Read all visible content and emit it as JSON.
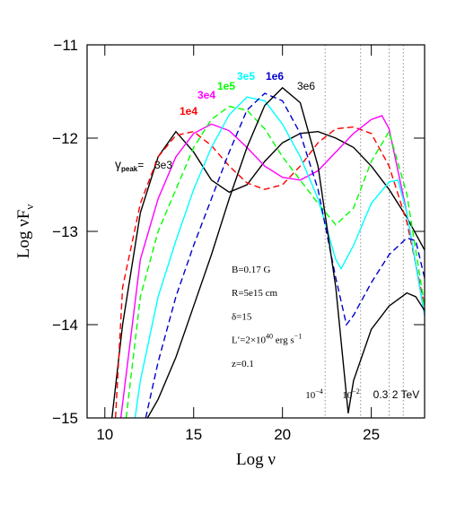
{
  "chart_data": {
    "type": "line",
    "xlabel": "Log ν",
    "ylabel": "Log νF",
    "ylabel_sub": "ν",
    "xlim": [
      9,
      28
    ],
    "ylim": [
      -15,
      -11
    ],
    "xticks": [
      10,
      15,
      20,
      25
    ],
    "yticks": [
      {
        "value": -11,
        "label": "−11"
      },
      {
        "value": -12,
        "label": "−12"
      },
      {
        "value": -13,
        "label": "−13"
      },
      {
        "value": -14,
        "label": "−14"
      },
      {
        "value": -15,
        "label": "−15"
      }
    ],
    "label_prefix": {
      "symbol": "γ",
      "subscript": "peak",
      "sign": "="
    },
    "series": [
      {
        "name": "3e3",
        "color": "#000000",
        "dashed": false,
        "x": [
          10.4,
          11,
          12,
          13,
          14,
          15,
          16,
          17,
          18,
          19,
          20,
          21,
          22,
          23,
          24,
          25,
          26,
          27,
          28
        ],
        "values": [
          -15,
          -14.0,
          -12.8,
          -12.2,
          -11.93,
          -12.15,
          -12.45,
          -12.58,
          -12.5,
          -12.25,
          -12.05,
          -11.95,
          -11.93,
          -12.0,
          -12.1,
          -12.3,
          -12.55,
          -12.85,
          -13.2
        ]
      },
      {
        "name": "1e4",
        "color": "#ff0000",
        "dashed": true,
        "x": [
          10.6,
          11,
          12,
          13,
          14,
          15,
          16,
          17,
          18,
          19,
          20,
          21,
          22,
          23,
          24,
          25,
          26,
          27,
          28
        ],
        "values": [
          -15,
          -13.6,
          -12.7,
          -12.2,
          -11.97,
          -11.93,
          -12.08,
          -12.3,
          -12.48,
          -12.55,
          -12.5,
          -12.3,
          -12.05,
          -11.9,
          -11.88,
          -11.95,
          -12.3,
          -12.9,
          -13.8
        ]
      },
      {
        "name": "3e4",
        "color": "#ff00ff",
        "dashed": false,
        "x": [
          10.9,
          12,
          13,
          14,
          15,
          16,
          17,
          18,
          19,
          20,
          21,
          22,
          23,
          24,
          25,
          25.6,
          26,
          27,
          28
        ],
        "values": [
          -15,
          -13.3,
          -12.65,
          -12.2,
          -11.95,
          -11.85,
          -11.92,
          -12.1,
          -12.3,
          -12.42,
          -12.45,
          -12.35,
          -12.15,
          -11.95,
          -11.8,
          -11.76,
          -11.9,
          -12.8,
          -13.9
        ]
      },
      {
        "name": "1e5",
        "color": "#00ff00",
        "dashed": true,
        "x": [
          11.2,
          12,
          13,
          14,
          15,
          16,
          17,
          18,
          19,
          20,
          21,
          22,
          23,
          24,
          25,
          26,
          27,
          28
        ],
        "values": [
          -15,
          -13.7,
          -13.0,
          -12.55,
          -12.1,
          -11.8,
          -11.66,
          -11.7,
          -11.9,
          -12.2,
          -12.45,
          -12.7,
          -12.93,
          -12.75,
          -12.25,
          -11.93,
          -12.6,
          -13.8
        ]
      },
      {
        "name": "3e5",
        "color": "#00ffff",
        "dashed": false,
        "x": [
          11.7,
          12,
          13,
          14,
          15,
          16,
          17,
          18,
          19,
          20,
          21,
          22,
          23,
          23.3,
          24,
          25,
          26,
          26.5,
          27,
          28
        ],
        "values": [
          -15,
          -14.6,
          -13.7,
          -13.1,
          -12.55,
          -12.1,
          -11.75,
          -11.56,
          -11.6,
          -11.85,
          -12.2,
          -12.65,
          -13.3,
          -13.4,
          -13.15,
          -12.7,
          -12.47,
          -12.45,
          -12.8,
          -13.9
        ]
      },
      {
        "name": "1e6",
        "color": "#0000cc",
        "dashed": true,
        "x": [
          12.3,
          13,
          14,
          15,
          16,
          17,
          18,
          19,
          20,
          21,
          22,
          23,
          23.6,
          24,
          25,
          26,
          27,
          27.5,
          28
        ],
        "values": [
          -15,
          -14.4,
          -13.7,
          -13.15,
          -12.65,
          -12.15,
          -11.7,
          -11.52,
          -11.6,
          -11.95,
          -12.55,
          -13.5,
          -14.0,
          -13.9,
          -13.55,
          -13.25,
          -13.07,
          -13.1,
          -13.5
        ]
      },
      {
        "name": "3e6",
        "color": "#000000",
        "dashed": false,
        "x": [
          12.4,
          13,
          14,
          15,
          16,
          17,
          18,
          19,
          20,
          21,
          22,
          23,
          23.7,
          24,
          25,
          26,
          27,
          27.5,
          28
        ],
        "values": [
          -15,
          -14.8,
          -14.35,
          -13.8,
          -13.25,
          -12.65,
          -12.1,
          -11.65,
          -11.46,
          -11.62,
          -12.3,
          -13.6,
          -14.95,
          -14.6,
          -14.05,
          -13.8,
          -13.66,
          -13.7,
          -13.85
        ]
      }
    ],
    "energy_markers": [
      {
        "x": 22.4,
        "base": "10",
        "exp": "−4"
      },
      {
        "x": 24.4,
        "base": "10",
        "exp": "−2"
      },
      {
        "x": 26.0,
        "base": "0.3"
      },
      {
        "x": 26.8,
        "base": "2 TeV"
      }
    ],
    "parameters": [
      [
        {
          "t": "B=0.17 G"
        }
      ],
      [
        {
          "t": "R=5e15 cm"
        }
      ],
      [
        {
          "t": "δ=15"
        }
      ],
      [
        {
          "t": "L′=2×10"
        },
        {
          "t": "40",
          "sup": true
        },
        {
          "t": " erg s"
        },
        {
          "t": "−1",
          "sup": true
        }
      ],
      [
        {
          "t": "z=0.1"
        }
      ]
    ]
  }
}
